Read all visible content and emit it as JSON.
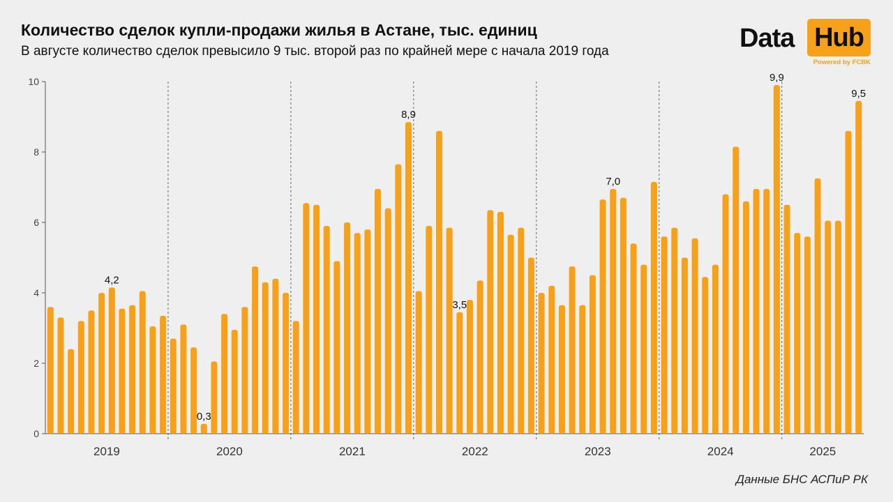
{
  "header": {
    "title": "Количество сделок купли-продажи жилья в Астане, тыс. единиц",
    "subtitle": "В августе количество сделок превысило 9 тыс. второй раз по крайней мере с начала 2019 года"
  },
  "logo": {
    "data_text": "Data",
    "hub_text": "Hub",
    "powered_text": "Powered by FCBK"
  },
  "source": "Данные БНС АСПиР РК",
  "colors": {
    "bar": "#f7a11a",
    "accent": "#f7a11a",
    "background": "#efefef"
  },
  "chart_data": {
    "type": "bar",
    "ylim": [
      0,
      10
    ],
    "yticks": [
      0,
      2,
      4,
      6,
      8,
      10
    ],
    "grid": false,
    "year_labels": [
      "2019",
      "2020",
      "2021",
      "2022",
      "2023",
      "2024",
      "2025"
    ],
    "year_start_index": [
      0,
      12,
      24,
      36,
      48,
      60,
      72
    ],
    "values": [
      3.6,
      3.3,
      2.4,
      3.2,
      3.5,
      4.0,
      4.15,
      3.55,
      3.65,
      4.05,
      3.05,
      3.35,
      2.7,
      3.1,
      2.45,
      0.28,
      2.05,
      3.4,
      2.95,
      3.6,
      4.75,
      4.3,
      4.4,
      4.0,
      3.2,
      6.55,
      6.5,
      5.9,
      4.9,
      6.0,
      5.7,
      5.8,
      6.95,
      6.4,
      7.65,
      8.85,
      4.05,
      5.9,
      8.6,
      5.85,
      3.45,
      3.8,
      4.35,
      6.35,
      6.3,
      5.65,
      5.85,
      5.0,
      4.0,
      4.2,
      3.65,
      4.75,
      3.65,
      4.5,
      6.65,
      6.95,
      6.7,
      5.4,
      4.8,
      7.15,
      5.6,
      5.85,
      5.0,
      5.55,
      4.45,
      4.8,
      6.8,
      8.15,
      6.6,
      6.95,
      6.95,
      9.9,
      6.5,
      5.7,
      5.6,
      7.25,
      6.05,
      6.05,
      8.6,
      9.45
    ],
    "data_labels": [
      {
        "index": 6,
        "text": "4,2"
      },
      {
        "index": 15,
        "text": "0,3"
      },
      {
        "index": 35,
        "text": "8,9"
      },
      {
        "index": 40,
        "text": "3,5"
      },
      {
        "index": 55,
        "text": "7,0"
      },
      {
        "index": 71,
        "text": "9,9"
      },
      {
        "index": 79,
        "text": "9,5"
      }
    ]
  }
}
